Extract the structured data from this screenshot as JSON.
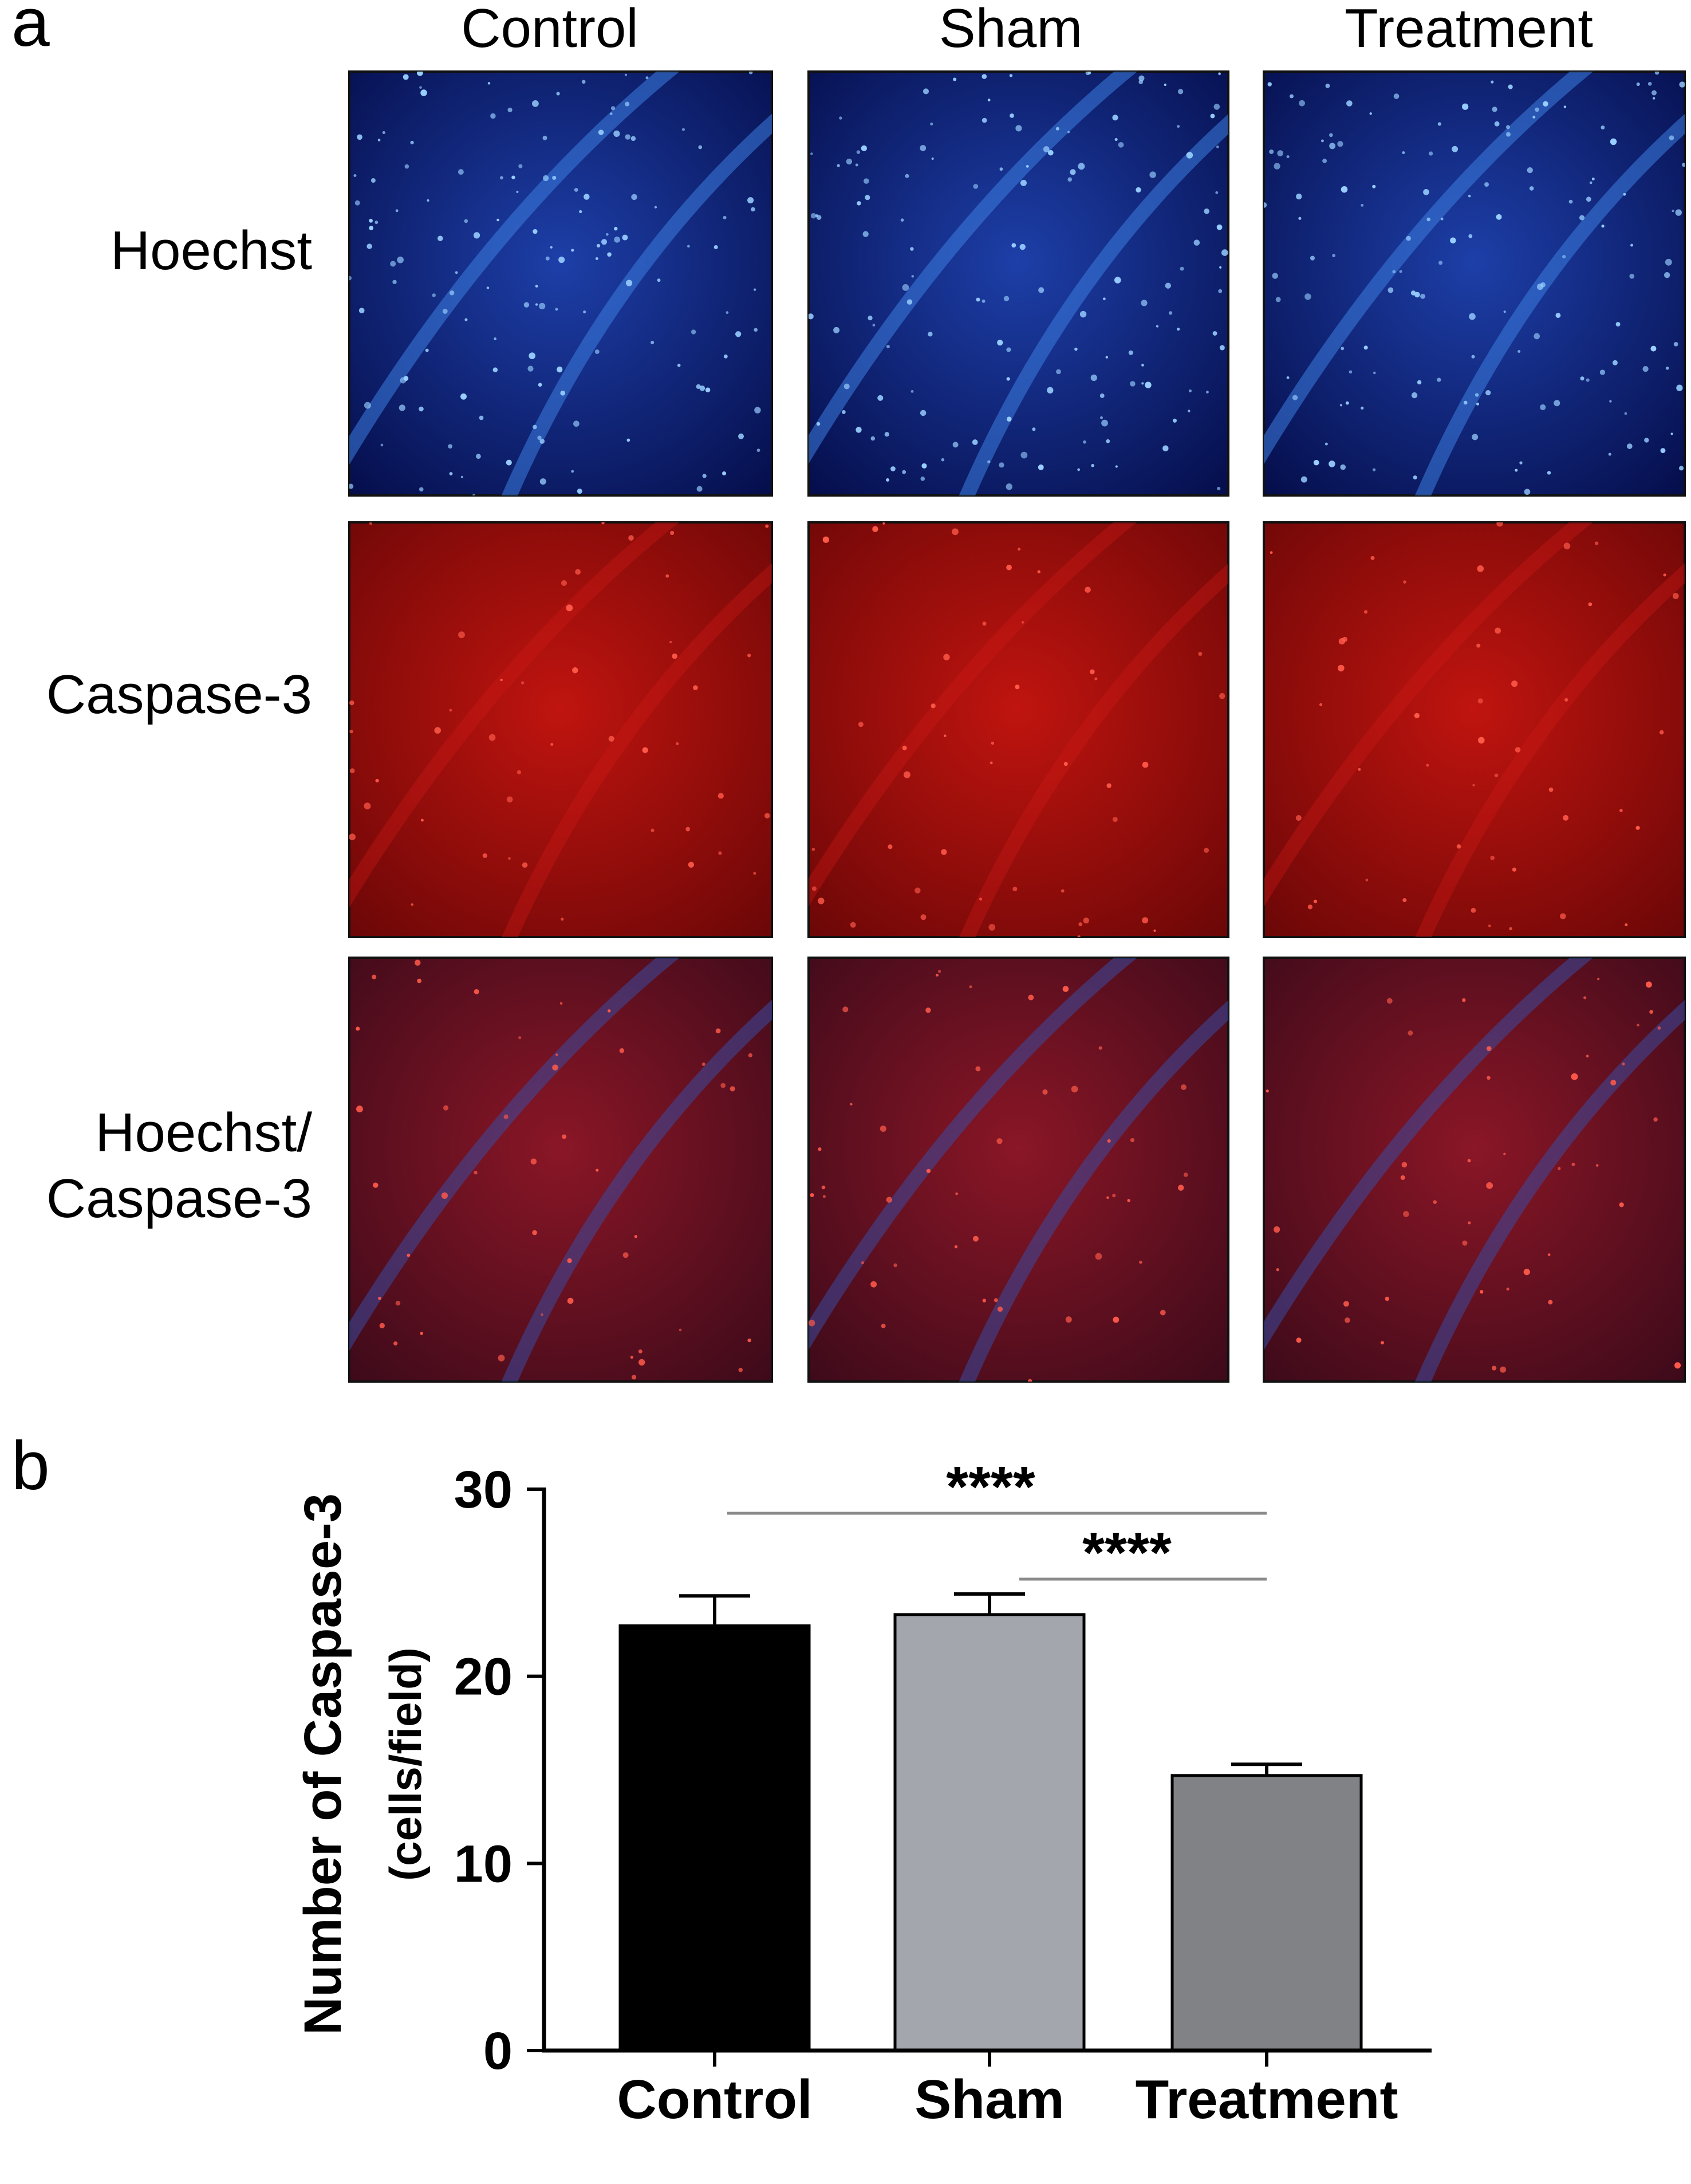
{
  "panel_a": {
    "letter": "a",
    "columns": [
      "Control",
      "Sham",
      "Treatment"
    ],
    "rows": [
      {
        "lines": [
          "Hoechst"
        ],
        "stain": "hoechst"
      },
      {
        "lines": [
          "Caspase-3"
        ],
        "stain": "caspase"
      },
      {
        "lines": [
          "Hoechst/",
          "Caspase-3"
        ],
        "stain": "merge"
      }
    ],
    "stain_colors": {
      "hoechst": "#0a1e6e",
      "caspase": "#9b0c0c",
      "merge": "#6e0f1a"
    }
  },
  "panel_b": {
    "letter": "b",
    "ylabel_line1": "Number of Caspase-3",
    "ylabel_line2": "(cells/field)",
    "sig_label": "****"
  },
  "chart_data": {
    "type": "bar",
    "categories": [
      "Control",
      "Sham",
      "Treatment"
    ],
    "values": [
      22.7,
      23.3,
      14.7
    ],
    "errors": [
      1.6,
      1.1,
      0.6
    ],
    "bar_colors": [
      "#000000",
      "#a3a6ad",
      "#808285"
    ],
    "ylim": [
      0,
      30
    ],
    "yticks": [
      0,
      10,
      20,
      30
    ],
    "ylabel": "Number of Caspase-3 (cells/field)",
    "comparisons": [
      {
        "from": "Control",
        "to": "Treatment",
        "label": "****"
      },
      {
        "from": "Sham",
        "to": "Treatment",
        "label": "****"
      }
    ]
  }
}
